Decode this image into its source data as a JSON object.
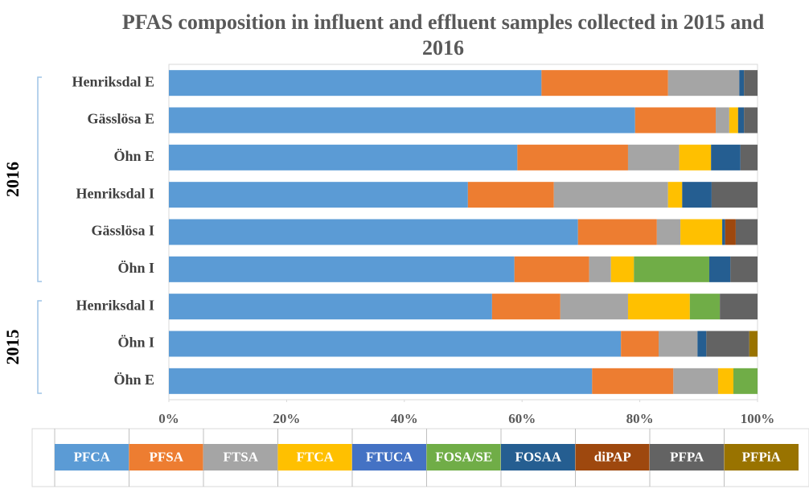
{
  "chart_data": {
    "type": "stacked-bar-horizontal",
    "title": "PFAS composition in influent and effluent samples collected in 2015 and 2016",
    "categories": [
      "Henriksdal E",
      "Gässlösa E",
      "Öhn E",
      "Henriksdal I",
      "Gässlösa I",
      "Öhn I",
      "Henriksdal I",
      "Öhn I",
      "Öhn E"
    ],
    "groups": [
      {
        "label": "2016",
        "start": 0,
        "end": 5
      },
      {
        "label": "2015",
        "start": 6,
        "end": 8
      }
    ],
    "xlim": [
      0,
      100
    ],
    "xticks": [
      {
        "value": 0,
        "label": "0%"
      },
      {
        "value": 20,
        "label": "20%"
      },
      {
        "value": 40,
        "label": "40%"
      },
      {
        "value": 60,
        "label": "60%"
      },
      {
        "value": 80,
        "label": "80%"
      },
      {
        "value": 100,
        "label": "100%"
      }
    ],
    "grid": false,
    "series": [
      {
        "name": "PFCA",
        "color": "#5b9bd5",
        "values": [
          63.3,
          79.2,
          59.2,
          50.8,
          69.5,
          58.7,
          54.9,
          76.8,
          71.9
        ]
      },
      {
        "name": "PFSA",
        "color": "#ed7d31",
        "values": [
          21.5,
          13.7,
          18.8,
          14.6,
          13.4,
          12.7,
          11.6,
          6.4,
          13.8
        ]
      },
      {
        "name": "FTSA",
        "color": "#a5a5a5",
        "values": [
          12.1,
          2.3,
          8.7,
          19.4,
          4.0,
          3.7,
          11.5,
          6.6,
          7.6
        ]
      },
      {
        "name": "FTCA",
        "color": "#ffc000",
        "values": [
          0,
          1.5,
          5.4,
          2.4,
          7.1,
          3.9,
          10.5,
          0,
          2.6
        ]
      },
      {
        "name": "FTUCA",
        "color": "#4472c4",
        "values": [
          0,
          0,
          0,
          0,
          0,
          0,
          0,
          0,
          0
        ]
      },
      {
        "name": "FOSA/SE",
        "color": "#70ad47",
        "values": [
          0,
          0,
          0,
          0,
          0,
          12.8,
          5.1,
          0,
          4.1
        ]
      },
      {
        "name": "FOSAA",
        "color": "#255e91",
        "values": [
          0.8,
          1.0,
          5.0,
          5.0,
          0.5,
          3.6,
          0,
          1.5,
          0
        ]
      },
      {
        "name": "diPAP",
        "color": "#9e480e",
        "values": [
          0,
          0,
          0,
          0,
          1.8,
          0,
          0,
          0,
          0
        ]
      },
      {
        "name": "PFPA",
        "color": "#636363",
        "values": [
          2.3,
          2.3,
          2.9,
          7.8,
          3.7,
          4.6,
          6.4,
          7.3,
          0
        ]
      },
      {
        "name": "PFPiA",
        "color": "#997300",
        "values": [
          0,
          0,
          0,
          0,
          0,
          0,
          0,
          1.4,
          0
        ]
      }
    ]
  }
}
